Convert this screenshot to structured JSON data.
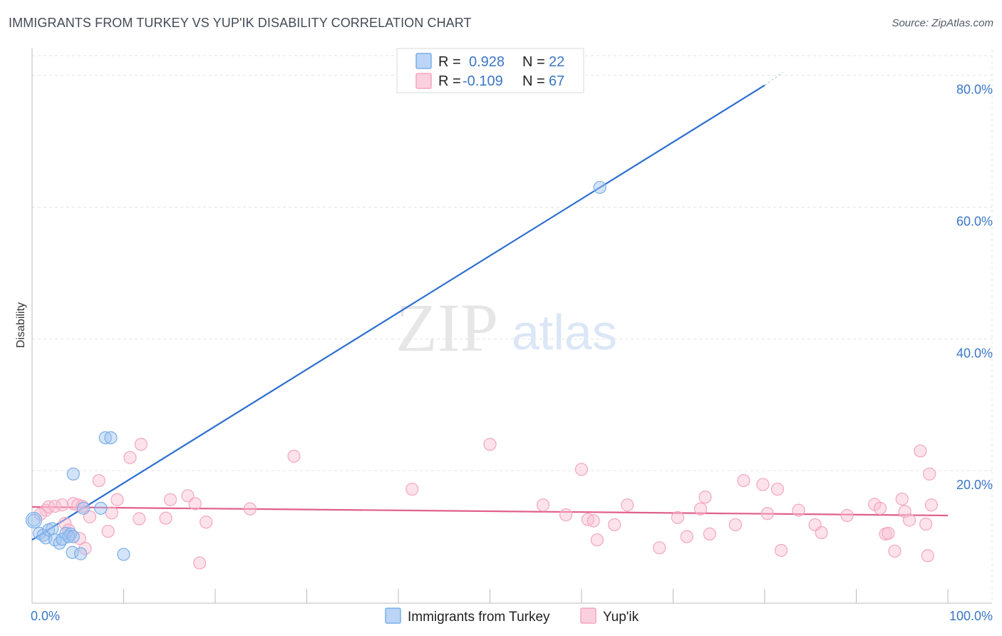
{
  "title": "IMMIGRANTS FROM TURKEY VS YUP'IK DISABILITY CORRELATION CHART",
  "source": "Source: ZipAtlas.com",
  "watermark": {
    "zip": "ZIP",
    "atlas": "atlas"
  },
  "chart_data": {
    "type": "scatter",
    "title": "IMMIGRANTS FROM TURKEY VS YUP'IK DISABILITY CORRELATION CHART",
    "xlabel": "",
    "ylabel": "Disability",
    "xlim": [
      0,
      100
    ],
    "ylim": [
      0,
      83
    ],
    "x_tick_labels": {
      "left": "0.0%",
      "right": "100.0%"
    },
    "y_ticks": [
      20,
      40,
      60,
      80
    ],
    "y_tick_labels": [
      "20.0%",
      "40.0%",
      "60.0%",
      "80.0%"
    ],
    "grid": true,
    "legend": {
      "placement": "top-center",
      "entries": [
        {
          "r_label": "R =",
          "r": "0.928",
          "n_label": "N =",
          "n": "22"
        },
        {
          "r_label": "R =",
          "r": "-0.109",
          "n_label": "N =",
          "n": "67"
        }
      ]
    },
    "series": [
      {
        "name": "Immigrants from Turkey",
        "color": "#7aaee8",
        "line_color": "#2d6fcf",
        "R": 0.928,
        "N": 22,
        "trend": {
          "x0": 0,
          "y0": 9.5,
          "x1": 80,
          "y1": 78.5,
          "dash_to_x": 82,
          "dash_to_y": 80.5
        },
        "points": [
          [
            0.2,
            12.5
          ],
          [
            0.8,
            10.5
          ],
          [
            1.2,
            10.2
          ],
          [
            1.5,
            9.8
          ],
          [
            1.8,
            11.0
          ],
          [
            2.2,
            11.2
          ],
          [
            2.5,
            9.5
          ],
          [
            3.0,
            9.0
          ],
          [
            3.3,
            9.6
          ],
          [
            3.7,
            10.5
          ],
          [
            4.2,
            10.4
          ],
          [
            4.0,
            10.0
          ],
          [
            4.5,
            10.0
          ],
          [
            4.5,
            19.5
          ],
          [
            4.4,
            7.6
          ],
          [
            5.3,
            7.4
          ],
          [
            5.6,
            14.3
          ],
          [
            7.5,
            14.3
          ],
          [
            8.0,
            25.0
          ],
          [
            8.6,
            25.0
          ],
          [
            10.0,
            7.3
          ],
          [
            62.0,
            63.0
          ]
        ]
      },
      {
        "name": "Yup'ik",
        "color": "#f4a6bf",
        "line_color": "#e0608b",
        "R": -0.109,
        "N": 67,
        "trend": {
          "x0": 0,
          "y0": 14.5,
          "x1": 100,
          "y1": 13.2
        },
        "points": [
          [
            1.5,
            14.0
          ],
          [
            1.8,
            14.5
          ],
          [
            2.5,
            14.6
          ],
          [
            3.3,
            14.8
          ],
          [
            3.6,
            12.0
          ],
          [
            4.0,
            11.0
          ],
          [
            4.5,
            15.0
          ],
          [
            5.0,
            14.8
          ],
          [
            5.2,
            9.7
          ],
          [
            5.5,
            14.6
          ],
          [
            5.8,
            8.2
          ],
          [
            6.3,
            13.0
          ],
          [
            7.3,
            18.5
          ],
          [
            8.3,
            10.8
          ],
          [
            8.7,
            13.6
          ],
          [
            9.3,
            15.6
          ],
          [
            10.7,
            22.0
          ],
          [
            11.7,
            12.7
          ],
          [
            11.9,
            24.0
          ],
          [
            14.6,
            12.8
          ],
          [
            15.1,
            15.6
          ],
          [
            17.0,
            16.2
          ],
          [
            17.8,
            15.0
          ],
          [
            18.3,
            6.0
          ],
          [
            19.0,
            12.2
          ],
          [
            23.8,
            14.2
          ],
          [
            28.6,
            22.2
          ],
          [
            41.5,
            17.2
          ],
          [
            50.0,
            24.0
          ],
          [
            55.8,
            14.8
          ],
          [
            58.3,
            13.3
          ],
          [
            60.0,
            20.2
          ],
          [
            60.7,
            12.6
          ],
          [
            61.3,
            12.4
          ],
          [
            61.7,
            9.5
          ],
          [
            63.6,
            11.8
          ],
          [
            65.0,
            14.8
          ],
          [
            68.5,
            8.3
          ],
          [
            70.5,
            12.9
          ],
          [
            71.5,
            10.0
          ],
          [
            73.0,
            14.2
          ],
          [
            73.5,
            16.0
          ],
          [
            74.0,
            10.4
          ],
          [
            76.8,
            11.8
          ],
          [
            77.7,
            18.5
          ],
          [
            79.8,
            17.9
          ],
          [
            80.3,
            13.5
          ],
          [
            81.4,
            17.2
          ],
          [
            81.8,
            7.9
          ],
          [
            83.7,
            14.0
          ],
          [
            85.5,
            11.8
          ],
          [
            86.2,
            10.6
          ],
          [
            89.0,
            13.2
          ],
          [
            92.0,
            14.9
          ],
          [
            92.6,
            14.3
          ],
          [
            93.2,
            10.4
          ],
          [
            93.5,
            10.5
          ],
          [
            94.2,
            7.8
          ],
          [
            95.0,
            15.7
          ],
          [
            95.3,
            13.8
          ],
          [
            95.8,
            12.5
          ],
          [
            97.0,
            23.0
          ],
          [
            97.6,
            11.9
          ],
          [
            97.8,
            7.1
          ],
          [
            98.0,
            19.5
          ],
          [
            98.2,
            14.8
          ],
          [
            0.9,
            13.4
          ]
        ]
      }
    ]
  }
}
